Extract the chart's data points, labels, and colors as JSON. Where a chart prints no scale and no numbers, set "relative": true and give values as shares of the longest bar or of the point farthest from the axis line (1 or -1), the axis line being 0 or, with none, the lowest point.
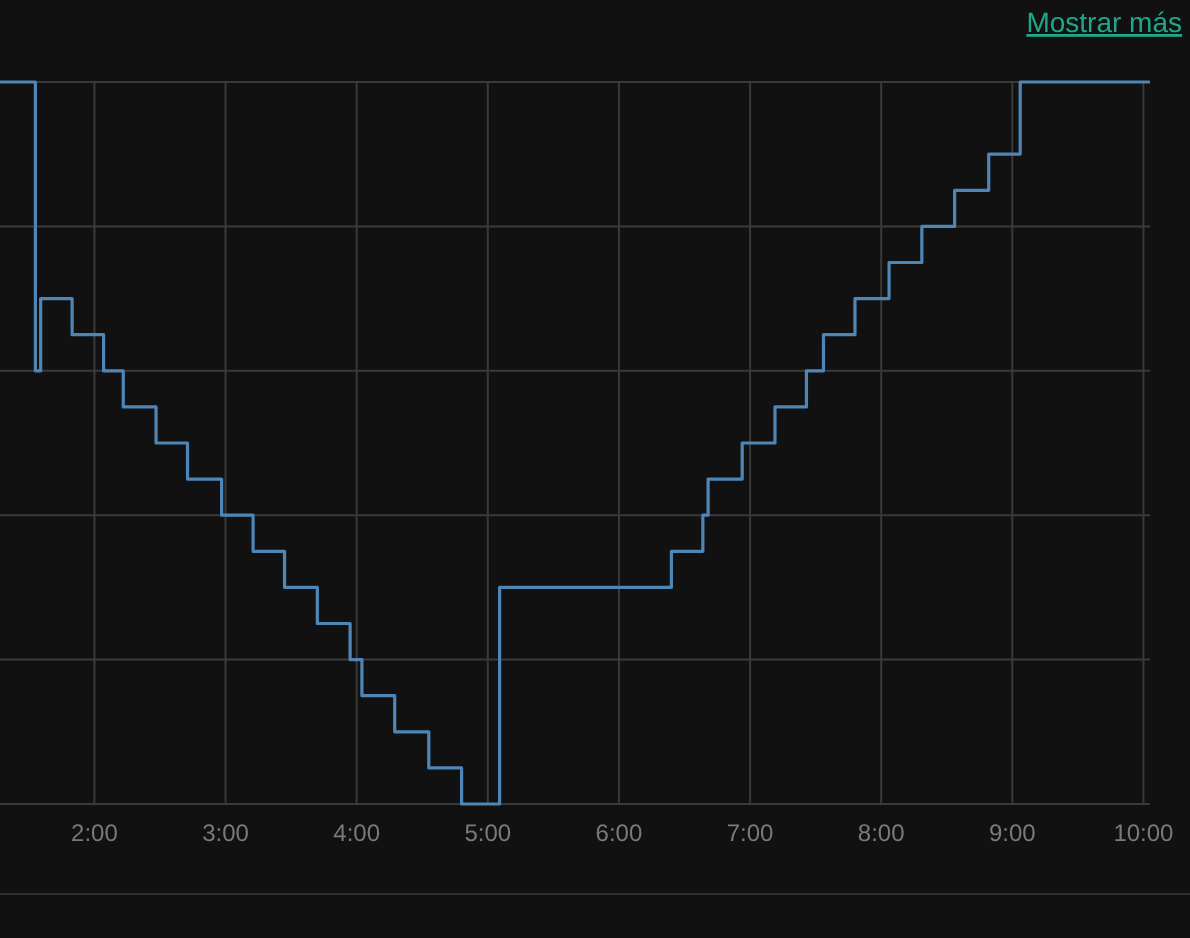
{
  "chart_data": {
    "type": "step",
    "relative": true,
    "grid": true,
    "marker": "none",
    "line_style": "solid",
    "annotations": [
      "Mostrar más"
    ],
    "xlim": [
      1.28,
      10.05
    ],
    "xticks": [
      {
        "value": 2,
        "label": "2:00"
      },
      {
        "value": 3,
        "label": "3:00"
      },
      {
        "value": 4,
        "label": "4:00"
      },
      {
        "value": 5,
        "label": "5:00"
      },
      {
        "value": 6,
        "label": "6:00"
      },
      {
        "value": 7,
        "label": "7:00"
      },
      {
        "value": 8,
        "label": "8:00"
      },
      {
        "value": 9,
        "label": "9:00"
      },
      {
        "value": 10,
        "label": "10:00"
      }
    ],
    "series": [
      {
        "color": "#4f86b8",
        "x": [
          1.28,
          1.55,
          1.59,
          1.83,
          2.07,
          2.22,
          2.47,
          2.71,
          2.97,
          3.21,
          3.45,
          3.7,
          3.95,
          4.04,
          4.29,
          4.55,
          4.8,
          5.09,
          6.4,
          6.64,
          6.68,
          6.94,
          7.19,
          7.43,
          7.56,
          7.8,
          8.06,
          8.31,
          8.56,
          8.82,
          9.06,
          10.05
        ],
        "values": [
          1,
          0.6,
          0.7,
          0.65,
          0.6,
          0.55,
          0.5,
          0.45,
          0.4,
          0.35,
          0.3,
          0.25,
          0.2,
          0.15,
          0.1,
          0.05,
          0,
          0.3,
          0.35,
          0.4,
          0.45,
          0.5,
          0.55,
          0.6,
          0.65,
          0.7,
          0.75,
          0.8,
          0.85,
          0.9,
          1,
          1
        ]
      }
    ]
  }
}
